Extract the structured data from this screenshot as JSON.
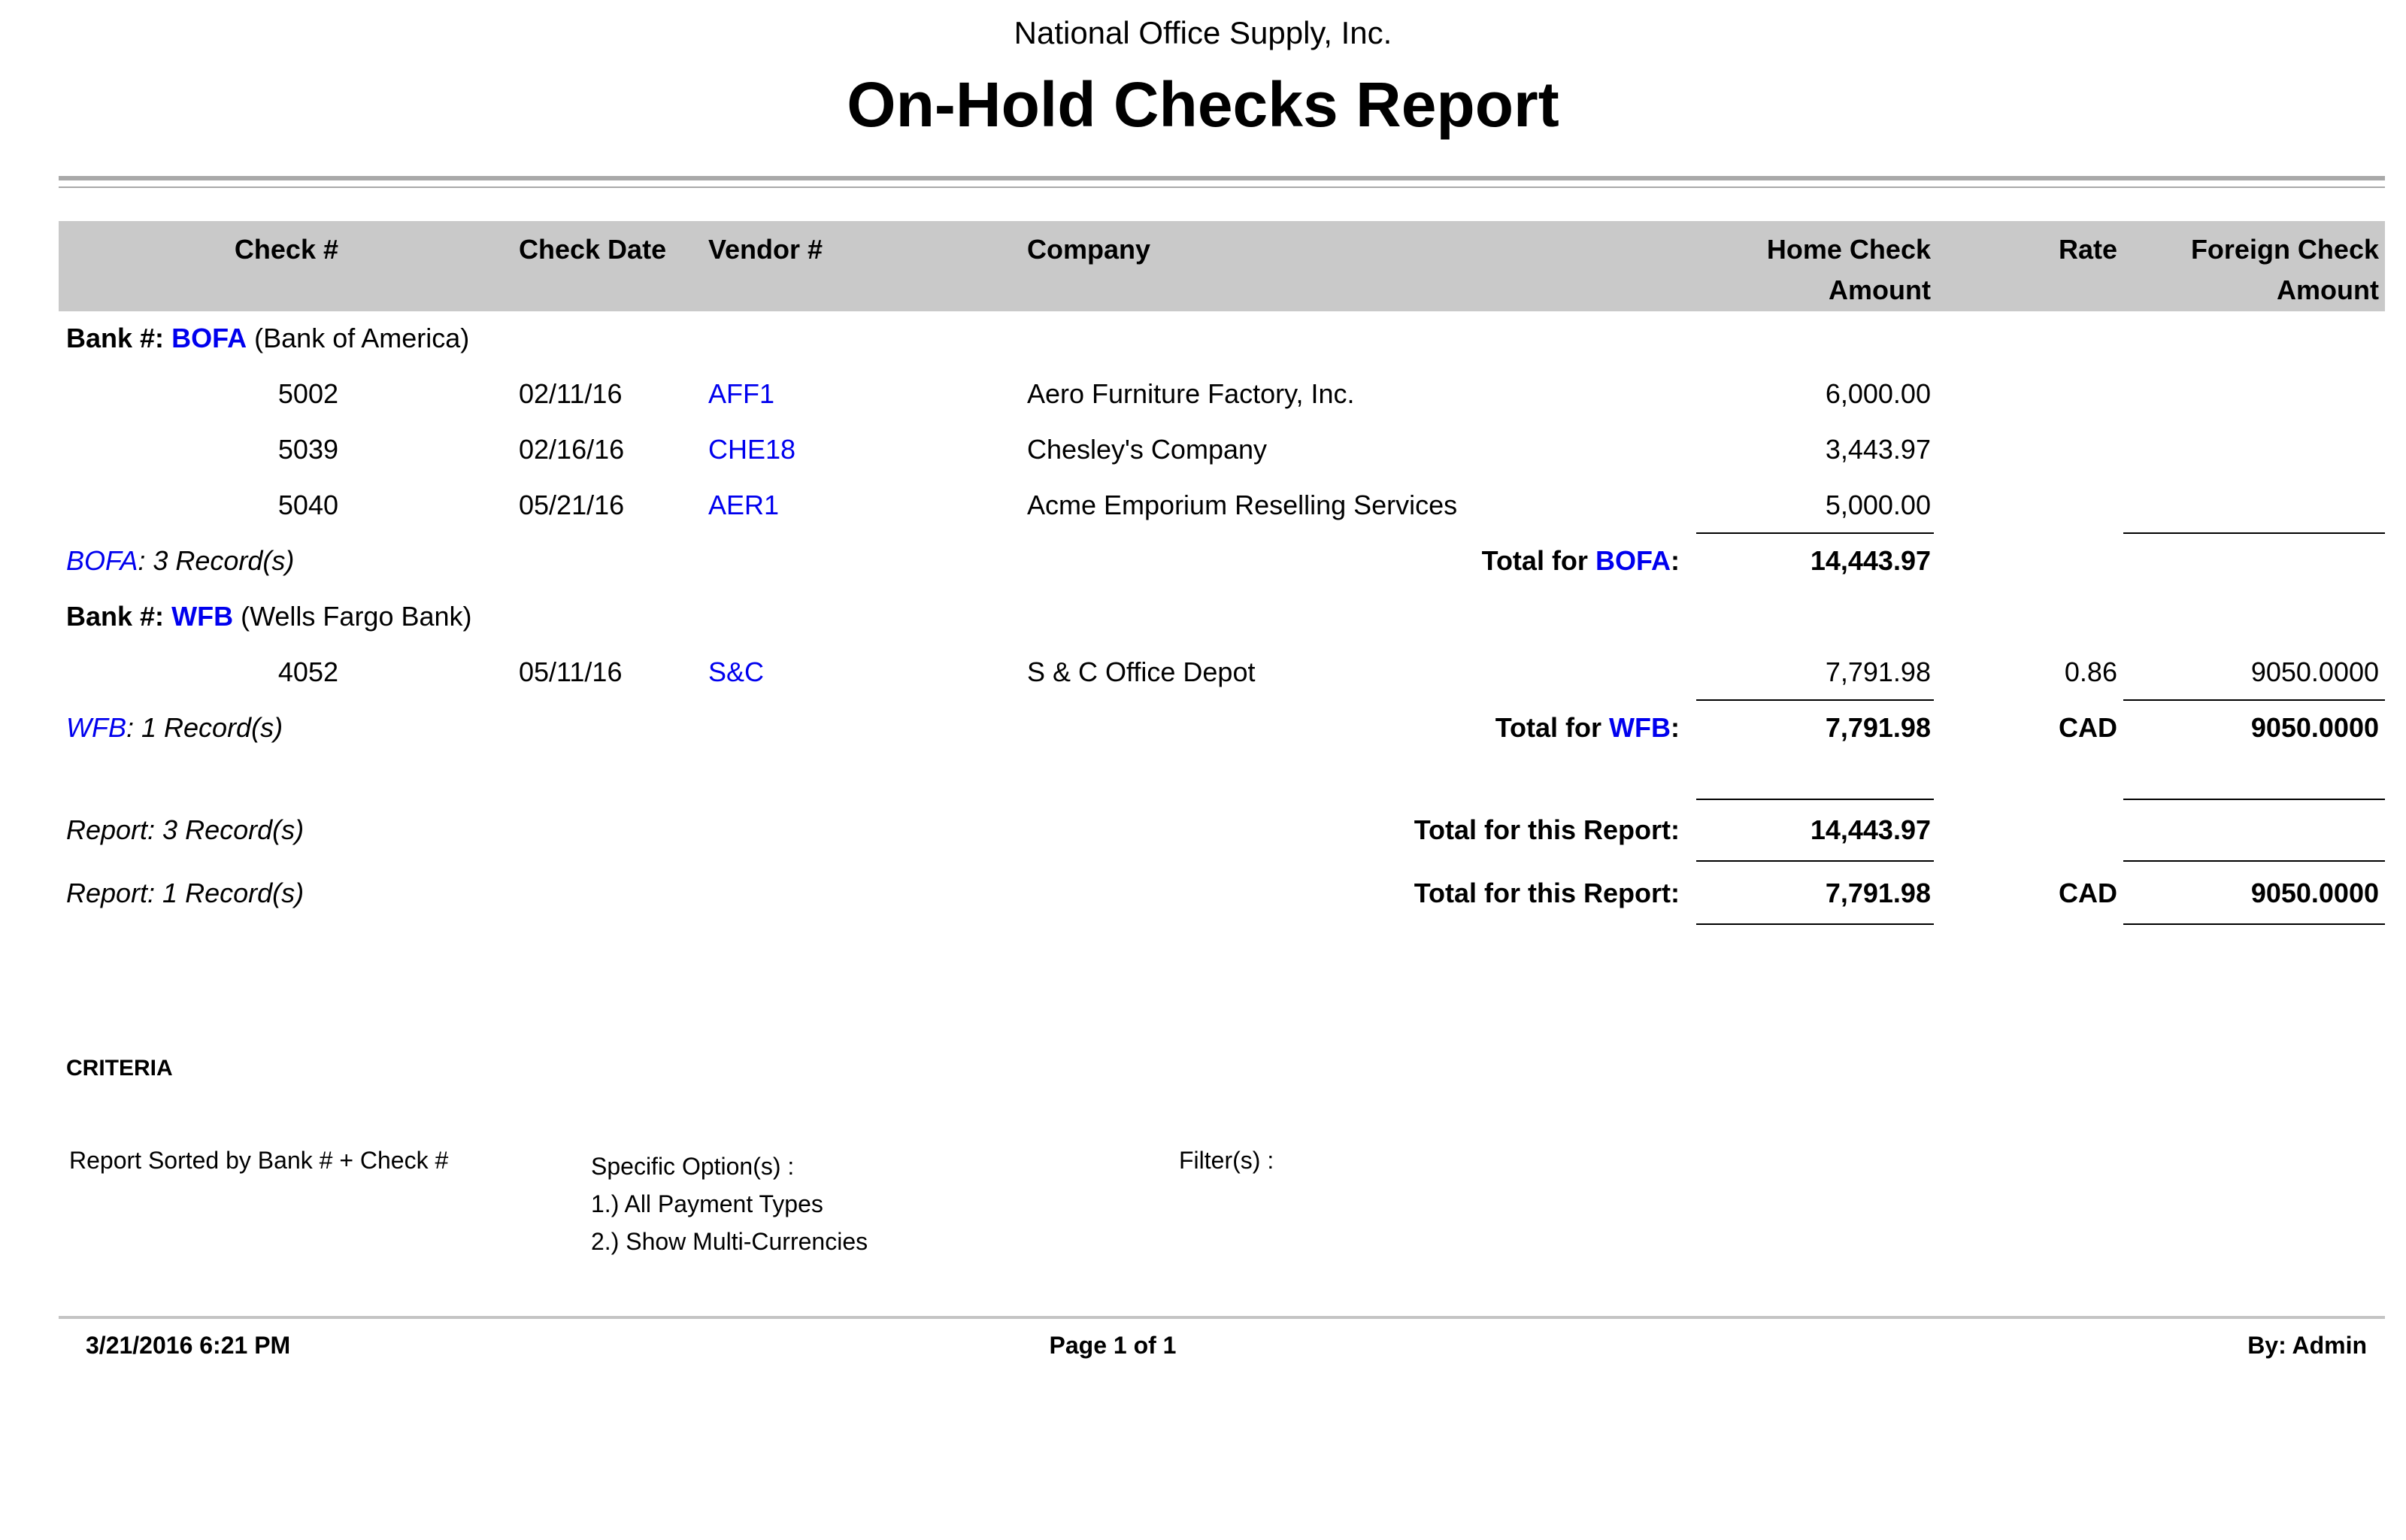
{
  "header": {
    "company": "National Office Supply, Inc.",
    "title": "On-Hold Checks Report"
  },
  "columns": {
    "check": "Check #",
    "date": "Check Date",
    "vendor": "Vendor #",
    "company": "Company",
    "home_line1": "Home Check",
    "home_line2": "Amount",
    "rate": "Rate",
    "foreign_line1": "Foreign Check",
    "foreign_line2": "Amount"
  },
  "banks": [
    {
      "label_prefix": "Bank #:",
      "code": "BOFA",
      "name": "(Bank of America)",
      "rows": [
        {
          "check": "5002",
          "date": "02/11/16",
          "vendor": "AFF1",
          "company": "Aero Furniture Factory, Inc.",
          "home": "6,000.00",
          "rate": "",
          "foreign": ""
        },
        {
          "check": "5039",
          "date": "02/16/16",
          "vendor": "CHE18",
          "company": "Chesley's Company",
          "home": "3,443.97",
          "rate": "",
          "foreign": ""
        },
        {
          "check": "5040",
          "date": "05/21/16",
          "vendor": "AER1",
          "company": "Acme Emporium Reselling Services",
          "home": "5,000.00",
          "rate": "",
          "foreign": ""
        }
      ],
      "records_label": ": 3 Record(s)",
      "total_label_pre": "Total for",
      "total_label_post": ":",
      "total_home": "14,443.97",
      "total_rate": "",
      "total_foreign": ""
    },
    {
      "label_prefix": "Bank #:",
      "code": "WFB",
      "name": "(Wells Fargo Bank)",
      "rows": [
        {
          "check": "4052",
          "date": "05/11/16",
          "vendor": "S&C",
          "company": "S & C Office Depot",
          "home": "7,791.98",
          "rate": "0.86",
          "foreign": "9050.0000"
        }
      ],
      "records_label": ": 1 Record(s)",
      "total_label_pre": "Total for",
      "total_label_post": ":",
      "total_home": "7,791.98",
      "total_rate": "CAD",
      "total_foreign": "9050.0000"
    }
  ],
  "report_totals": [
    {
      "records": "Report: 3 Record(s)",
      "label": "Total for this Report:",
      "home": "14,443.97",
      "rate": "",
      "foreign": ""
    },
    {
      "records": "Report: 1 Record(s)",
      "label": "Total for this Report:",
      "home": "7,791.98",
      "rate": "CAD",
      "foreign": "9050.0000"
    }
  ],
  "criteria": {
    "heading": "CRITERIA",
    "sorted_by": "Report Sorted by Bank # + Check #",
    "options_label": "Specific Option(s) :",
    "options": [
      "1.) All Payment Types",
      "2.) Show Multi-Currencies"
    ],
    "filters_label": "Filter(s) :"
  },
  "footer": {
    "timestamp": "3/21/2016 6:21 PM",
    "page": "Page 1 of 1",
    "by": "By: Admin"
  },
  "colors": {
    "accent_blue": "#0000ee",
    "header_bg": "#c9c9c9"
  }
}
